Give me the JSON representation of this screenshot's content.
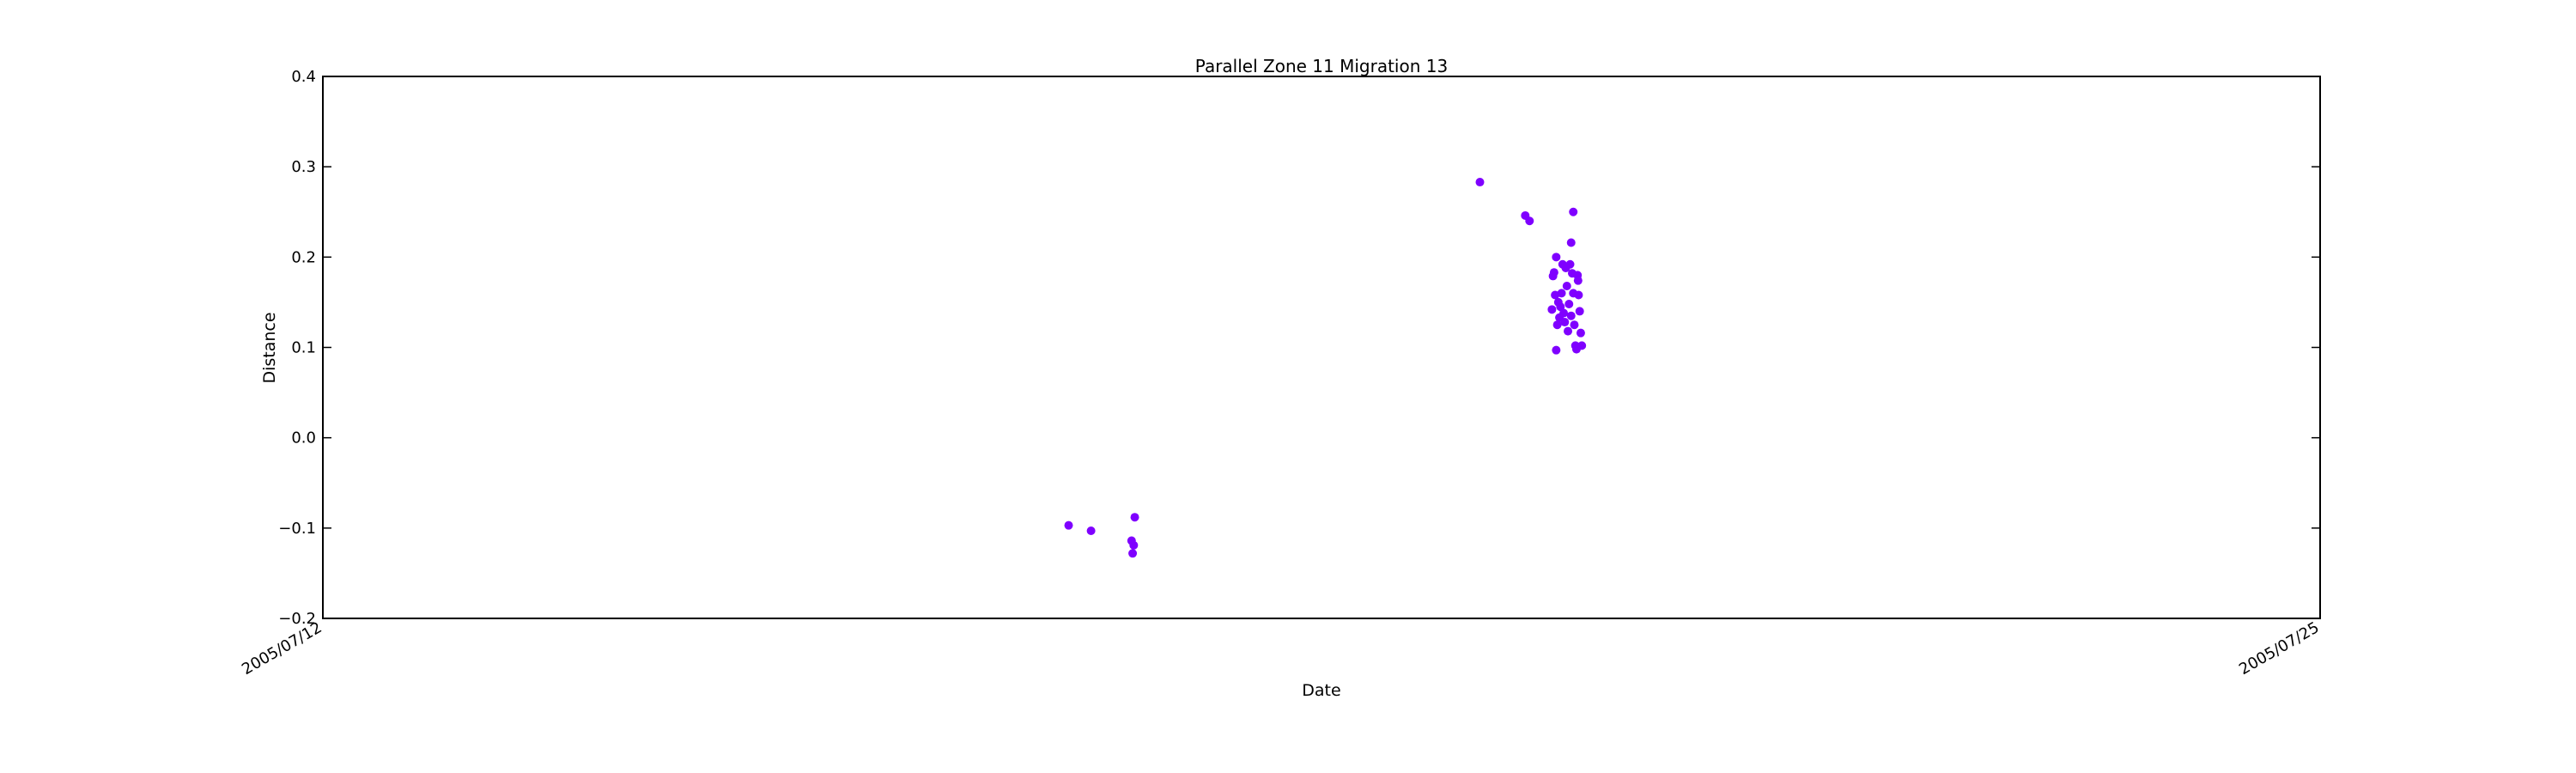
{
  "chart_data": {
    "type": "scatter",
    "title": "Parallel Zone 11 Migration 13",
    "xlabel": "Date",
    "ylabel": "Distance",
    "xlim": [
      "2005-07-12",
      "2005-07-25"
    ],
    "ylim": [
      -0.2,
      0.4
    ],
    "x_ticks": [
      {
        "value": "2005-07-12",
        "label": "2005/07/12"
      },
      {
        "value": "2005-07-25",
        "label": "2005/07/25"
      }
    ],
    "y_ticks": [
      {
        "value": -0.2,
        "label": "−0.2"
      },
      {
        "value": -0.1,
        "label": "−0.1"
      },
      {
        "value": 0.0,
        "label": "0.0"
      },
      {
        "value": 0.1,
        "label": "0.1"
      },
      {
        "value": 0.2,
        "label": "0.2"
      },
      {
        "value": 0.3,
        "label": "0.3"
      },
      {
        "value": 0.4,
        "label": "0.4"
      }
    ],
    "grid": false,
    "marker_color": "#7f00ff",
    "series": [
      {
        "points": [
          {
            "x": "2005-07-16T20:30",
            "y": -0.097
          },
          {
            "x": "2005-07-17T00:00",
            "y": -0.103
          },
          {
            "x": "2005-07-17T06:20",
            "y": -0.114
          },
          {
            "x": "2005-07-17T06:30",
            "y": -0.128
          },
          {
            "x": "2005-07-17T06:40",
            "y": -0.119
          },
          {
            "x": "2005-07-17T06:50",
            "y": -0.088
          },
          {
            "x": "2005-07-19T12:45",
            "y": 0.283
          },
          {
            "x": "2005-07-19T19:50",
            "y": 0.246
          },
          {
            "x": "2005-07-19T20:30",
            "y": 0.24
          },
          {
            "x": "2005-07-20T00:00",
            "y": 0.142
          },
          {
            "x": "2005-07-20T00:10",
            "y": 0.179
          },
          {
            "x": "2005-07-20T00:20",
            "y": 0.183
          },
          {
            "x": "2005-07-20T00:30",
            "y": 0.158
          },
          {
            "x": "2005-07-20T00:40",
            "y": 0.097
          },
          {
            "x": "2005-07-20T00:40",
            "y": 0.2
          },
          {
            "x": "2005-07-20T00:50",
            "y": 0.125
          },
          {
            "x": "2005-07-20T01:00",
            "y": 0.15
          },
          {
            "x": "2005-07-20T01:10",
            "y": 0.133
          },
          {
            "x": "2005-07-20T01:20",
            "y": 0.145
          },
          {
            "x": "2005-07-20T01:30",
            "y": 0.16
          },
          {
            "x": "2005-07-20T01:40",
            "y": 0.192
          },
          {
            "x": "2005-07-20T01:50",
            "y": 0.138
          },
          {
            "x": "2005-07-20T02:00",
            "y": 0.128
          },
          {
            "x": "2005-07-20T02:10",
            "y": 0.188
          },
          {
            "x": "2005-07-20T02:20",
            "y": 0.168
          },
          {
            "x": "2005-07-20T02:30",
            "y": 0.118
          },
          {
            "x": "2005-07-20T02:40",
            "y": 0.148
          },
          {
            "x": "2005-07-20T02:50",
            "y": 0.192
          },
          {
            "x": "2005-07-20T03:00",
            "y": 0.216
          },
          {
            "x": "2005-07-20T03:00",
            "y": 0.135
          },
          {
            "x": "2005-07-20T03:10",
            "y": 0.182
          },
          {
            "x": "2005-07-20T03:20",
            "y": 0.25
          },
          {
            "x": "2005-07-20T03:20",
            "y": 0.16
          },
          {
            "x": "2005-07-20T03:30",
            "y": 0.125
          },
          {
            "x": "2005-07-20T03:40",
            "y": 0.102
          },
          {
            "x": "2005-07-20T03:50",
            "y": 0.098
          },
          {
            "x": "2005-07-20T04:00",
            "y": 0.18
          },
          {
            "x": "2005-07-20T04:05",
            "y": 0.174
          },
          {
            "x": "2005-07-20T04:10",
            "y": 0.158
          },
          {
            "x": "2005-07-20T04:20",
            "y": 0.14
          },
          {
            "x": "2005-07-20T04:30",
            "y": 0.116
          },
          {
            "x": "2005-07-20T04:40",
            "y": 0.102
          }
        ]
      }
    ]
  }
}
